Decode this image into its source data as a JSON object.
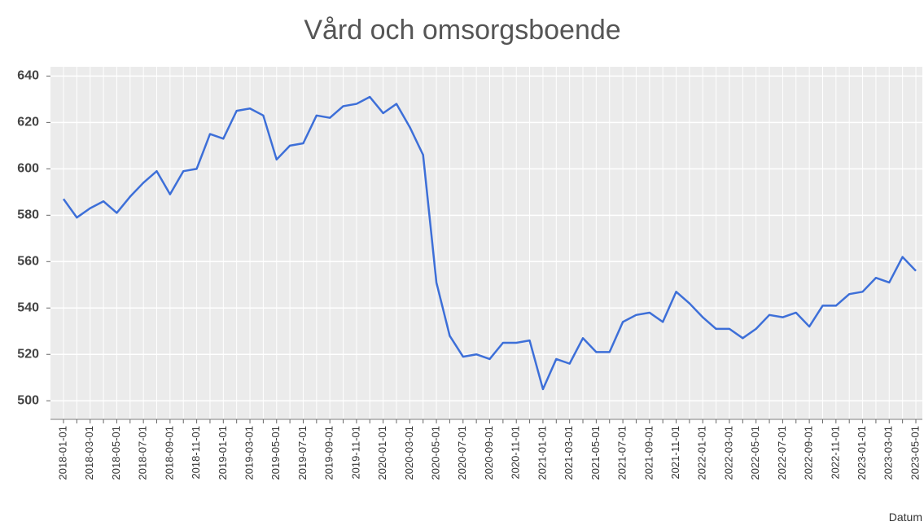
{
  "chart_data": {
    "type": "line",
    "title": "Vård och omsorgsboende",
    "x_label": "Datum",
    "categories": [
      "2018-01-01",
      null,
      "2018-03-01",
      null,
      "2018-05-01",
      null,
      "2018-07-01",
      null,
      "2018-09-01",
      null,
      "2018-11-01",
      null,
      "2019-01-01",
      null,
      "2019-03-01",
      null,
      "2019-05-01",
      null,
      "2019-07-01",
      null,
      "2019-09-01",
      null,
      "2019-11-01",
      null,
      "2020-01-01",
      null,
      "2020-03-01",
      null,
      "2020-05-01",
      null,
      "2020-07-01",
      null,
      "2020-09-01",
      null,
      "2020-11-01",
      null,
      "2021-01-01",
      null,
      "2021-03-01",
      null,
      "2021-05-01",
      null,
      "2021-07-01",
      null,
      "2021-09-01",
      null,
      "2021-11-01",
      null,
      "2022-01-01",
      null,
      "2022-03-01",
      null,
      "2022-05-01",
      null,
      "2022-07-01",
      null,
      "2022-09-01",
      null,
      "2022-11-01",
      null,
      "2023-01-01",
      null,
      "2023-03-01",
      null,
      "2023-05-01"
    ],
    "values": [
      587,
      579,
      583,
      586,
      581,
      588,
      594,
      599,
      589,
      599,
      600,
      615,
      613,
      625,
      626,
      623,
      604,
      610,
      611,
      623,
      622,
      627,
      628,
      631,
      624,
      628,
      618,
      606,
      551,
      528,
      519,
      520,
      518,
      525,
      525,
      526,
      505,
      518,
      516,
      527,
      521,
      521,
      534,
      537,
      538,
      534,
      547,
      542,
      536,
      531,
      531,
      527,
      531,
      537,
      536,
      538,
      532,
      541,
      541,
      546,
      547,
      553,
      551,
      562,
      556
    ],
    "color": "#3d6fd8",
    "ylim": [
      492,
      644
    ],
    "yticks": [
      500,
      520,
      540,
      560,
      580,
      600,
      620,
      640
    ],
    "grid": true
  }
}
